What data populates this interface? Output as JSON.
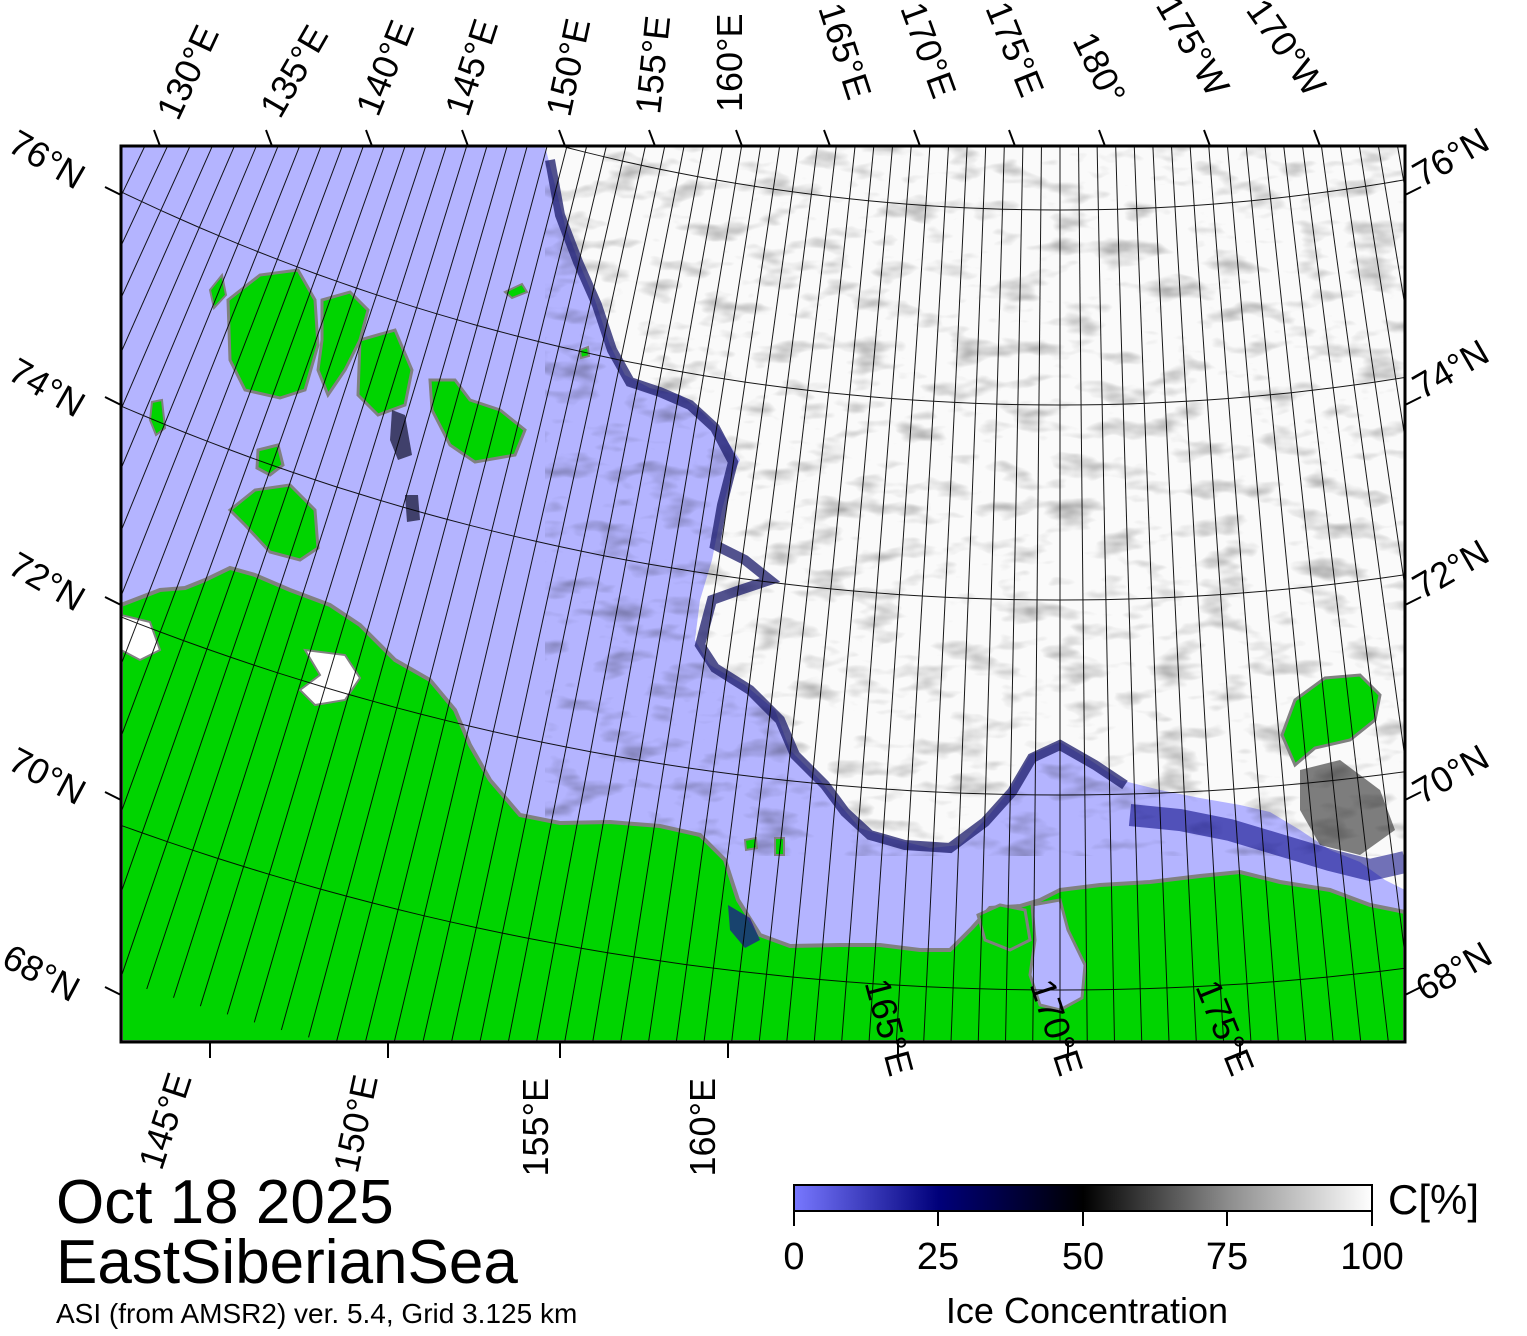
{
  "map": {
    "date": "Oct 18 2025",
    "region": "EastSiberianSea",
    "product": "ASI (from AMSR2) ver. 5.4,  Grid 3.125 km",
    "top_lon_labels": [
      "130°E",
      "135°E",
      "140°E",
      "145°E",
      "150°E",
      "155°E",
      "160°E",
      "165°E",
      "170°E",
      "175°E",
      "180°",
      "175°W",
      "170°W"
    ],
    "bottom_lon_labels": [
      "145°E",
      "150°E",
      "155°E",
      "160°E",
      "165°E",
      "170°E",
      "175°E"
    ],
    "lat_labels": [
      "76°N",
      "74°N",
      "72°N",
      "70°N",
      "68°N"
    ],
    "colors": {
      "land": "#00d400",
      "open_water": "#b4b4ff",
      "ice_high": "#ffffff",
      "coast": "#808080"
    }
  },
  "colorbar": {
    "title": "Ice Concentration",
    "unit": "C[%]",
    "ticks": [
      "0",
      "25",
      "50",
      "75",
      "100"
    ],
    "stops": [
      "#7878ff",
      "#00007a",
      "#000000",
      "#8c8c8c",
      "#ffffff"
    ]
  }
}
